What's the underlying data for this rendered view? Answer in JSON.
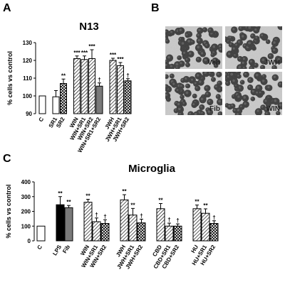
{
  "panels": {
    "a_letter": "A",
    "b_letter": "B",
    "c_letter": "C"
  },
  "micrographs": {
    "labels": [
      "Veh",
      "JWH",
      "Fib",
      "WIN"
    ]
  },
  "chart_data": [
    {
      "type": "bar",
      "title": "N13",
      "ylabel": "% cells vs control",
      "xlabel": "",
      "ylim": [
        90,
        130
      ],
      "yticks": [
        90,
        100,
        110,
        120,
        130
      ],
      "grid": false,
      "categories": [
        "C",
        "SR1",
        "SR2",
        "WIN",
        "WIN+SR1",
        "WIN+SR2",
        "WIN+SR1+SR2",
        "JWH",
        "JWH+SR1",
        "JWH+SR2"
      ],
      "groups": [
        [
          0
        ],
        [
          1,
          2
        ],
        [
          3,
          4,
          5,
          6
        ],
        [
          7,
          8,
          9
        ]
      ],
      "values": [
        100,
        99.5,
        107,
        121,
        120.5,
        121,
        105.5,
        120,
        117,
        108.5
      ],
      "errors": [
        0,
        3.5,
        2.5,
        1.5,
        2,
        5,
        1.8,
        1.2,
        1.8,
        1.2
      ],
      "fills": [
        "white",
        "white",
        "cross",
        "diag",
        "diag",
        "diag",
        "gray",
        "diag",
        "diag",
        "cross"
      ],
      "significance": [
        "",
        "",
        "**",
        "***",
        "***",
        "***",
        "†",
        "***",
        "***",
        "†"
      ]
    },
    {
      "type": "bar",
      "title": "Microglia",
      "ylabel": "% cells vs control",
      "xlabel": "",
      "ylim": [
        0,
        400
      ],
      "yticks": [
        0,
        100,
        200,
        300,
        400
      ],
      "grid": false,
      "categories": [
        "C",
        "LPS",
        "Fib",
        "WIN",
        "WIN+SR1",
        "WIN+SR2",
        "JWH",
        "JWH+SR1",
        "JWH+SR2",
        "CBD",
        "CBD+SR1",
        "CBD+SR2",
        "HU",
        "HU+SR1",
        "HU+SR2"
      ],
      "groups": [
        [
          0
        ],
        [
          1,
          2
        ],
        [
          3,
          4,
          5
        ],
        [
          6,
          7,
          8
        ],
        [
          9,
          10,
          11
        ],
        [
          12,
          13,
          14
        ]
      ],
      "values": [
        100,
        245,
        225,
        262,
        130,
        118,
        278,
        175,
        122,
        218,
        100,
        100,
        218,
        187,
        118
      ],
      "errors": [
        0,
        55,
        15,
        20,
        25,
        25,
        35,
        45,
        25,
        35,
        20,
        15,
        25,
        30,
        18
      ],
      "fills": [
        "white",
        "black",
        "gray",
        "diag",
        "diag",
        "cross",
        "diag",
        "diag",
        "cross",
        "diag",
        "diag",
        "cross",
        "diag",
        "diag",
        "cross"
      ],
      "significance": [
        "",
        "**",
        "**",
        "**",
        "†",
        "†",
        "**",
        "**",
        "†",
        "**",
        "†",
        "†",
        "**",
        "**",
        "†"
      ]
    }
  ]
}
